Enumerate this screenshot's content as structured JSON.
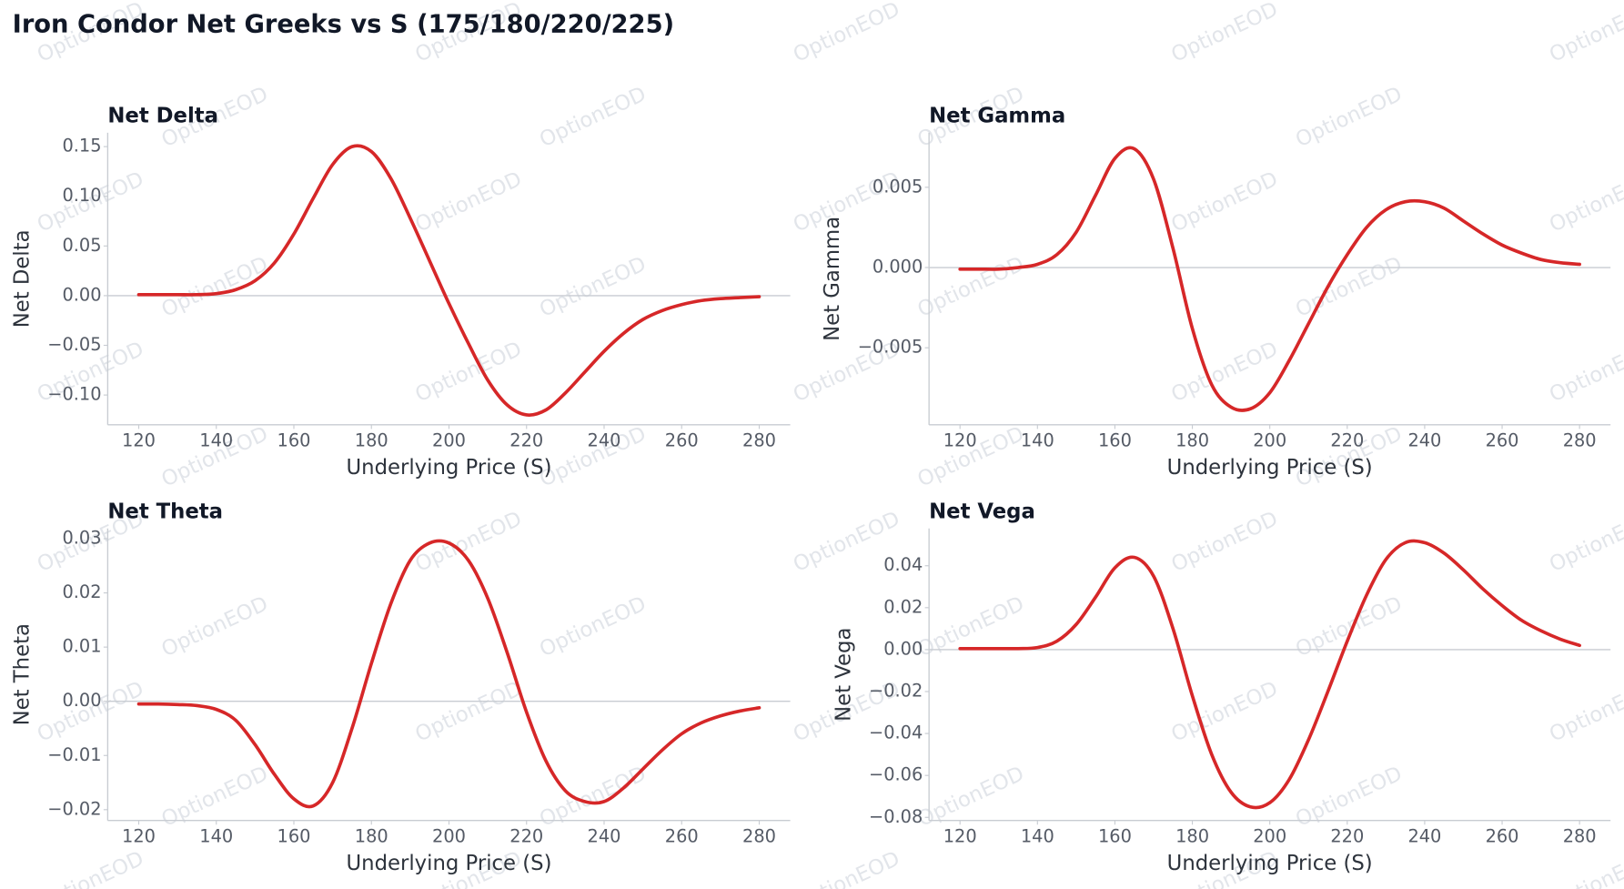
{
  "title": "Iron Condor Net Greeks vs S (175/180/220/225)",
  "watermark": "OptionEOD",
  "chart_data": [
    {
      "type": "line",
      "title": "Net Delta",
      "x_label": "Underlying Price (S)",
      "y_label": "Net Delta",
      "color": "#d62728",
      "x": [
        120,
        125,
        130,
        135,
        140,
        145,
        150,
        155,
        160,
        165,
        170,
        175,
        180,
        185,
        190,
        195,
        200,
        205,
        210,
        215,
        220,
        225,
        230,
        235,
        240,
        245,
        250,
        255,
        260,
        265,
        270,
        275,
        280
      ],
      "values": [
        0.001,
        0.001,
        0.001,
        0.001,
        0.002,
        0.006,
        0.015,
        0.033,
        0.062,
        0.098,
        0.132,
        0.15,
        0.145,
        0.118,
        0.078,
        0.035,
        -0.008,
        -0.048,
        -0.085,
        -0.11,
        -0.12,
        -0.115,
        -0.098,
        -0.077,
        -0.056,
        -0.038,
        -0.024,
        -0.015,
        -0.009,
        -0.005,
        -0.003,
        -0.002,
        -0.001
      ],
      "xlim": [
        112,
        288
      ],
      "xticks": [
        120,
        140,
        160,
        180,
        200,
        220,
        240,
        260,
        280
      ],
      "ylim": [
        -0.13,
        0.164
      ],
      "yticks": [
        {
          "value": -0.1,
          "label": "−0.10"
        },
        {
          "value": -0.05,
          "label": "−0.05"
        },
        {
          "value": 0,
          "label": "0.00"
        },
        {
          "value": 0.05,
          "label": "0.05"
        },
        {
          "value": 0.1,
          "label": "0.10"
        },
        {
          "value": 0.15,
          "label": "0.15"
        }
      ]
    },
    {
      "type": "line",
      "title": "Net Gamma",
      "x_label": "Underlying Price (S)",
      "y_label": "Net Gamma",
      "color": "#d62728",
      "x": [
        120,
        125,
        130,
        135,
        140,
        145,
        150,
        155,
        160,
        165,
        170,
        175,
        180,
        185,
        190,
        195,
        200,
        205,
        210,
        215,
        220,
        225,
        230,
        235,
        240,
        245,
        250,
        255,
        260,
        265,
        270,
        275,
        280
      ],
      "values": [
        -0.0001,
        -0.0001,
        -0.0001,
        0,
        0.0002,
        0.0008,
        0.0022,
        0.0045,
        0.0068,
        0.0074,
        0.0055,
        0.0012,
        -0.0038,
        -0.0073,
        -0.0087,
        -0.0088,
        -0.0078,
        -0.0058,
        -0.0035,
        -0.0012,
        0.0008,
        0.0025,
        0.0036,
        0.0041,
        0.0041,
        0.0037,
        0.0029,
        0.0021,
        0.0014,
        0.0009,
        0.0005,
        0.0003,
        0.0002
      ],
      "xlim": [
        112,
        288
      ],
      "xticks": [
        120,
        140,
        160,
        180,
        200,
        220,
        240,
        260,
        280
      ],
      "ylim": [
        -0.0098,
        0.0084
      ],
      "yticks": [
        {
          "value": -0.005,
          "label": "−0.005"
        },
        {
          "value": 0,
          "label": "0.000"
        },
        {
          "value": 0.005,
          "label": "0.005"
        }
      ]
    },
    {
      "type": "line",
      "title": "Net Theta",
      "x_label": "Underlying Price (S)",
      "y_label": "Net Theta",
      "color": "#d62728",
      "x": [
        120,
        125,
        130,
        135,
        140,
        145,
        150,
        155,
        160,
        165,
        170,
        175,
        180,
        185,
        190,
        195,
        200,
        205,
        210,
        215,
        220,
        225,
        230,
        235,
        240,
        245,
        250,
        255,
        260,
        265,
        270,
        275,
        280
      ],
      "values": [
        -0.0005,
        -0.0005,
        -0.0006,
        -0.0008,
        -0.0015,
        -0.0035,
        -0.008,
        -0.0135,
        -0.018,
        -0.0193,
        -0.015,
        -0.005,
        0.007,
        0.018,
        0.026,
        0.0292,
        0.0292,
        0.026,
        0.019,
        0.009,
        -0.002,
        -0.011,
        -0.0165,
        -0.0185,
        -0.0185,
        -0.016,
        -0.0125,
        -0.009,
        -0.006,
        -0.004,
        -0.0027,
        -0.0018,
        -0.0012
      ],
      "xlim": [
        112,
        288
      ],
      "xticks": [
        120,
        140,
        160,
        180,
        200,
        220,
        240,
        260,
        280
      ],
      "ylim": [
        -0.022,
        0.0319
      ],
      "yticks": [
        {
          "value": -0.02,
          "label": "−0.02"
        },
        {
          "value": -0.01,
          "label": "−0.01"
        },
        {
          "value": 0,
          "label": "0.00"
        },
        {
          "value": 0.01,
          "label": "0.01"
        },
        {
          "value": 0.02,
          "label": "0.02"
        },
        {
          "value": 0.03,
          "label": "0.03"
        }
      ]
    },
    {
      "type": "line",
      "title": "Net Vega",
      "x_label": "Underlying Price (S)",
      "y_label": "Net Vega",
      "color": "#d62728",
      "x": [
        120,
        125,
        130,
        135,
        140,
        145,
        150,
        155,
        160,
        165,
        170,
        175,
        180,
        185,
        190,
        195,
        200,
        205,
        210,
        215,
        220,
        225,
        230,
        235,
        240,
        245,
        250,
        255,
        260,
        265,
        270,
        275,
        280
      ],
      "values": [
        0.0005,
        0.0005,
        0.0005,
        0.0005,
        0.001,
        0.004,
        0.012,
        0.025,
        0.039,
        0.044,
        0.035,
        0.01,
        -0.022,
        -0.05,
        -0.068,
        -0.075,
        -0.073,
        -0.062,
        -0.043,
        -0.02,
        0.004,
        0.026,
        0.043,
        0.051,
        0.051,
        0.046,
        0.038,
        0.029,
        0.021,
        0.014,
        0.009,
        0.005,
        0.002
      ],
      "xlim": [
        112,
        288
      ],
      "xticks": [
        120,
        140,
        160,
        180,
        200,
        220,
        240,
        260,
        280
      ],
      "ylim": [
        -0.0815,
        0.0578
      ],
      "yticks": [
        {
          "value": -0.08,
          "label": "−0.08"
        },
        {
          "value": -0.06,
          "label": "−0.06"
        },
        {
          "value": -0.04,
          "label": "−0.04"
        },
        {
          "value": -0.02,
          "label": "−0.02"
        },
        {
          "value": 0,
          "label": "0.00"
        },
        {
          "value": 0.02,
          "label": "0.02"
        },
        {
          "value": 0.04,
          "label": "0.04"
        }
      ]
    }
  ]
}
